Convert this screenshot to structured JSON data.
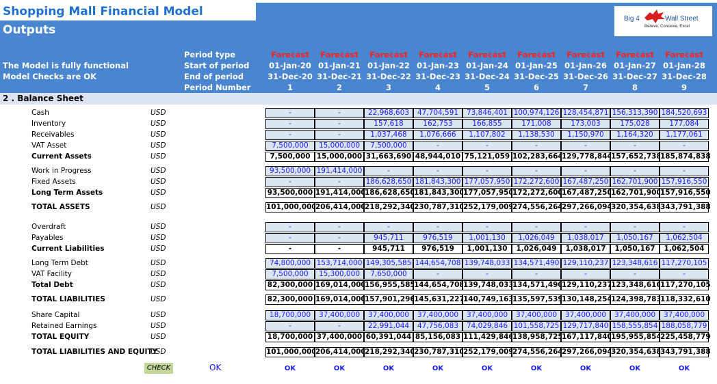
{
  "title": "Shopping Mall Financial Model",
  "subtitle": "Outputs",
  "status": {
    "functional": "The Model is fully functional",
    "checks": "Model Checks are OK"
  },
  "logo": {
    "text1": "Big 4",
    "text2": "Wall Street",
    "slogan": "Believe, Conceive, Excel"
  },
  "header_labels": {
    "period_type": "Period type",
    "start": "Start of period",
    "end": "End of period",
    "number": "Period Number"
  },
  "periods": [
    {
      "type": "Forecast",
      "start": "01-Jan-20",
      "end": "31-Dec-20",
      "num": "1"
    },
    {
      "type": "Forecast",
      "start": "01-Jan-21",
      "end": "31-Dec-21",
      "num": "2"
    },
    {
      "type": "Forecast",
      "start": "01-Jan-22",
      "end": "31-Dec-22",
      "num": "3"
    },
    {
      "type": "Forecast",
      "start": "01-Jan-23",
      "end": "31-Dec-23",
      "num": "4"
    },
    {
      "type": "Forecast",
      "start": "01-Jan-24",
      "end": "31-Dec-24",
      "num": "5"
    },
    {
      "type": "Forecast",
      "start": "01-Jan-25",
      "end": "31-Dec-25",
      "num": "6"
    },
    {
      "type": "Forecast",
      "start": "01-Jan-26",
      "end": "31-Dec-26",
      "num": "7"
    },
    {
      "type": "Forecast",
      "start": "01-Jan-27",
      "end": "31-Dec-27",
      "num": "8"
    },
    {
      "type": "Forecast",
      "start": "01-Jan-28",
      "end": "31-Dec-28",
      "num": "9"
    }
  ],
  "section_title": "2 . Balance Sheet",
  "rows": [
    {
      "label": "Cash",
      "unit": "USD",
      "style": "in",
      "values": [
        "-",
        "-",
        "22,968,603",
        "47,704,591",
        "73,846,401",
        "100,974,126",
        "128,454,871",
        "156,313,390",
        "184,520,693"
      ]
    },
    {
      "label": "Inventory",
      "unit": "USD",
      "style": "in",
      "values": [
        "-",
        "-",
        "157,618",
        "162,753",
        "166,855",
        "171,008",
        "173,003",
        "175,028",
        "177,084"
      ]
    },
    {
      "label": "Receivables",
      "unit": "USD",
      "style": "in",
      "values": [
        "-",
        "-",
        "1,037,468",
        "1,076,666",
        "1,107,802",
        "1,138,530",
        "1,150,970",
        "1,164,320",
        "1,177,061"
      ]
    },
    {
      "label": "VAT Asset",
      "unit": "USD",
      "style": "in",
      "values": [
        "7,500,000",
        "15,000,000",
        "7,500,000",
        "-",
        "-",
        "-",
        "-",
        "-",
        "-"
      ]
    },
    {
      "label": "Current Assets",
      "unit": "USD",
      "style": "tot",
      "values": [
        "7,500,000",
        "15,000,000",
        "31,663,690",
        "48,944,010",
        "75,121,059",
        "102,283,664",
        "129,778,844",
        "157,652,738",
        "185,874,838"
      ]
    },
    {
      "label": "Work in Progress",
      "unit": "USD",
      "style": "in",
      "values": [
        "93,500,000",
        "191,414,000",
        "-",
        "-",
        "-",
        "-",
        "-",
        "-",
        "-"
      ]
    },
    {
      "label": "Fixed Assets",
      "unit": "USD",
      "style": "in",
      "values": [
        "-",
        "-",
        "186,628,650",
        "181,843,300",
        "177,057,950",
        "172,272,600",
        "167,487,250",
        "162,701,900",
        "157,916,550"
      ]
    },
    {
      "label": "Long Term Assets",
      "unit": "USD",
      "style": "tot",
      "values": [
        "93,500,000",
        "191,414,000",
        "186,628,650",
        "181,843,300",
        "177,057,950",
        "172,272,600",
        "167,487,250",
        "162,701,900",
        "157,916,550"
      ]
    },
    {
      "label": "TOTAL ASSETS",
      "unit": "USD",
      "style": "tot",
      "values": [
        "101,000,000",
        "206,414,000",
        "218,292,340",
        "230,787,310",
        "252,179,009",
        "274,556,264",
        "297,266,094",
        "320,354,638",
        "343,791,388"
      ]
    },
    {
      "label": "Overdraft",
      "unit": "USD",
      "style": "in",
      "values": [
        "-",
        "-",
        "-",
        "-",
        "-",
        "-",
        "-",
        "-",
        "-"
      ]
    },
    {
      "label": "Payables",
      "unit": "USD",
      "style": "in",
      "values": [
        "-",
        "-",
        "945,711",
        "976,519",
        "1,001,130",
        "1,026,049",
        "1,038,017",
        "1,050,167",
        "1,062,504"
      ]
    },
    {
      "label": "Current Liabilities",
      "unit": "USD",
      "style": "tot",
      "values": [
        "-",
        "-",
        "945,711",
        "976,519",
        "1,001,130",
        "1,026,049",
        "1,038,017",
        "1,050,167",
        "1,062,504"
      ]
    },
    {
      "label": "Long Term Debt",
      "unit": "USD",
      "style": "in",
      "values": [
        "74,800,000",
        "153,714,000",
        "149,305,585",
        "144,654,708",
        "139,748,033",
        "134,571,490",
        "129,110,237",
        "123,348,616",
        "117,270,105"
      ]
    },
    {
      "label": "VAT Facility",
      "unit": "USD",
      "style": "in",
      "values": [
        "7,500,000",
        "15,300,000",
        "7,650,000",
        "-",
        "-",
        "-",
        "-",
        "-",
        "-"
      ]
    },
    {
      "label": "Total Debt",
      "unit": "USD",
      "style": "tot",
      "values": [
        "82,300,000",
        "169,014,000",
        "156,955,585",
        "144,654,708",
        "139,748,033",
        "134,571,490",
        "129,110,237",
        "123,348,616",
        "117,270,105"
      ]
    },
    {
      "label": "TOTAL LIABILITIES",
      "unit": "USD",
      "style": "tot",
      "values": [
        "82,300,000",
        "169,014,000",
        "157,901,296",
        "145,631,227",
        "140,749,163",
        "135,597,539",
        "130,148,254",
        "124,398,783",
        "118,332,610"
      ]
    },
    {
      "label": "Share Capital",
      "unit": "USD",
      "style": "in",
      "values": [
        "18,700,000",
        "37,400,000",
        "37,400,000",
        "37,400,000",
        "37,400,000",
        "37,400,000",
        "37,400,000",
        "37,400,000",
        "37,400,000"
      ]
    },
    {
      "label": "Retained Earnings",
      "unit": "USD",
      "style": "in",
      "values": [
        "-",
        "-",
        "22,991,044",
        "47,756,083",
        "74,029,846",
        "101,558,725",
        "129,717,840",
        "158,555,854",
        "188,058,779"
      ]
    },
    {
      "label": "TOTAL EQUITY",
      "unit": "USD",
      "style": "tot",
      "values": [
        "18,700,000",
        "37,400,000",
        "60,391,044",
        "85,156,083",
        "111,429,846",
        "138,958,725",
        "167,117,840",
        "195,955,854",
        "225,458,779"
      ]
    },
    {
      "label": "TOTAL LIABILITIES AND EQUITY",
      "unit": "USD",
      "style": "tot",
      "values": [
        "101,000,000",
        "206,414,000",
        "218,292,340",
        "230,787,310",
        "252,179,009",
        "274,556,264",
        "297,266,094",
        "320,354,638",
        "343,791,388"
      ]
    }
  ],
  "check": {
    "label": "CHECK",
    "overall": "OK",
    "values": [
      "OK",
      "OK",
      "OK",
      "OK",
      "OK",
      "OK",
      "OK",
      "OK",
      "OK"
    ]
  }
}
